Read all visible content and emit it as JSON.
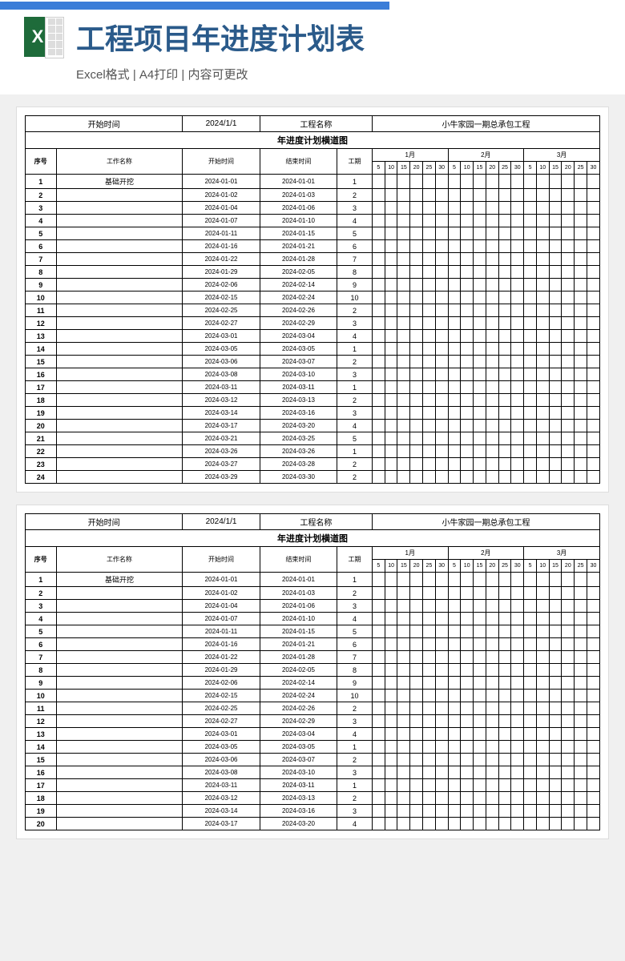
{
  "header": {
    "title": "工程项目年进度计划表",
    "subtitle": "Excel格式 | A4打印 | 内容可更改"
  },
  "info": {
    "start_label": "开始时间",
    "start_date": "2024/1/1",
    "proj_label": "工程名称",
    "proj_name": "小牛家园一期总承包工程"
  },
  "chart_title": "年进度计划横道图",
  "cols": {
    "seq": "序号",
    "name": "工作名称",
    "start": "开始时间",
    "end": "结束时间",
    "dur": "工期"
  },
  "months": [
    "1月",
    "2月",
    "3月"
  ],
  "days": [
    "5",
    "10",
    "15",
    "20",
    "25",
    "30"
  ],
  "bar_color": "#3b7dd8",
  "day_width": 9,
  "total_days": 90,
  "rows": [
    {
      "n": 1,
      "name": "基础开挖",
      "s": "2024-01-01",
      "e": "2024-01-01",
      "d": 1,
      "bs": 0,
      "bw": 1
    },
    {
      "n": 2,
      "name": "",
      "s": "2024-01-02",
      "e": "2024-01-03",
      "d": 2,
      "bs": 1,
      "bw": 2
    },
    {
      "n": 3,
      "name": "",
      "s": "2024-01-04",
      "e": "2024-01-06",
      "d": 3,
      "bs": 3,
      "bw": 3
    },
    {
      "n": 4,
      "name": "",
      "s": "2024-01-07",
      "e": "2024-01-10",
      "d": 4,
      "bs": 6,
      "bw": 4
    },
    {
      "n": 5,
      "name": "",
      "s": "2024-01-11",
      "e": "2024-01-15",
      "d": 5,
      "bs": 10,
      "bw": 5
    },
    {
      "n": 6,
      "name": "",
      "s": "2024-01-16",
      "e": "2024-01-21",
      "d": 6,
      "bs": 15,
      "bw": 6
    },
    {
      "n": 7,
      "name": "",
      "s": "2024-01-22",
      "e": "2024-01-28",
      "d": 7,
      "bs": 21,
      "bw": 7
    },
    {
      "n": 8,
      "name": "",
      "s": "2024-01-29",
      "e": "2024-02-05",
      "d": 8,
      "bs": 28,
      "bw": 8
    },
    {
      "n": 9,
      "name": "",
      "s": "2024-02-06",
      "e": "2024-02-14",
      "d": 9,
      "bs": 36,
      "bw": 9
    },
    {
      "n": 10,
      "name": "",
      "s": "2024-02-15",
      "e": "2024-02-24",
      "d": 10,
      "bs": 45,
      "bw": 10
    },
    {
      "n": 11,
      "name": "",
      "s": "2024-02-25",
      "e": "2024-02-26",
      "d": 2,
      "bs": 55,
      "bw": 2
    },
    {
      "n": 12,
      "name": "",
      "s": "2024-02-27",
      "e": "2024-02-29",
      "d": 3,
      "bs": 57,
      "bw": 3
    },
    {
      "n": 13,
      "name": "",
      "s": "2024-03-01",
      "e": "2024-03-04",
      "d": 4,
      "bs": 60,
      "bw": 4
    },
    {
      "n": 14,
      "name": "",
      "s": "2024-03-05",
      "e": "2024-03-05",
      "d": 1,
      "bs": 64,
      "bw": 1
    },
    {
      "n": 15,
      "name": "",
      "s": "2024-03-06",
      "e": "2024-03-07",
      "d": 2,
      "bs": 65,
      "bw": 2
    },
    {
      "n": 16,
      "name": "",
      "s": "2024-03-08",
      "e": "2024-03-10",
      "d": 3,
      "bs": 67,
      "bw": 3
    },
    {
      "n": 17,
      "name": "",
      "s": "2024-03-11",
      "e": "2024-03-11",
      "d": 1,
      "bs": 70,
      "bw": 1
    },
    {
      "n": 18,
      "name": "",
      "s": "2024-03-12",
      "e": "2024-03-13",
      "d": 2,
      "bs": 71,
      "bw": 2
    },
    {
      "n": 19,
      "name": "",
      "s": "2024-03-14",
      "e": "2024-03-16",
      "d": 3,
      "bs": 73,
      "bw": 3
    },
    {
      "n": 20,
      "name": "",
      "s": "2024-03-17",
      "e": "2024-03-20",
      "d": 4,
      "bs": 76,
      "bw": 4
    },
    {
      "n": 21,
      "name": "",
      "s": "2024-03-21",
      "e": "2024-03-25",
      "d": 5,
      "bs": 80,
      "bw": 5
    },
    {
      "n": 22,
      "name": "",
      "s": "2024-03-26",
      "e": "2024-03-26",
      "d": 1,
      "bs": 85,
      "bw": 1
    },
    {
      "n": 23,
      "name": "",
      "s": "2024-03-27",
      "e": "2024-03-28",
      "d": 2,
      "bs": 86,
      "bw": 2
    },
    {
      "n": 24,
      "name": "",
      "s": "2024-03-29",
      "e": "2024-03-30",
      "d": 2,
      "bs": 88,
      "bw": 2
    }
  ],
  "preview2_row_count": 20
}
